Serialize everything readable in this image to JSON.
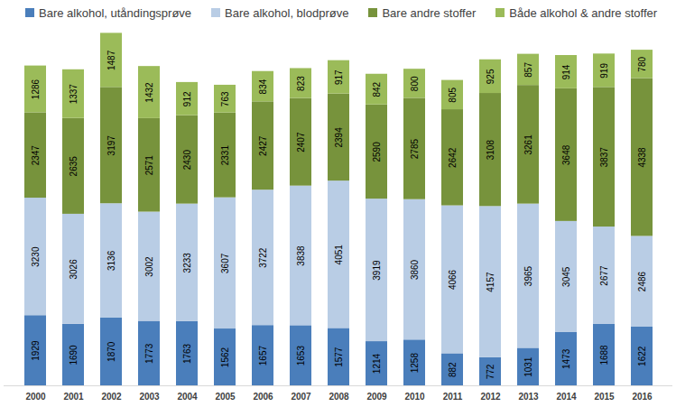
{
  "chart_data": {
    "type": "bar",
    "stacked": true,
    "data_labels": true,
    "legend": "top",
    "tick_labels": "x",
    "categories": [
      "2000",
      "2001",
      "2002",
      "2003",
      "2004",
      "2005",
      "2006",
      "2007",
      "2008",
      "2009",
      "2010",
      "2011",
      "2012",
      "2013",
      "2014",
      "2015",
      "2016"
    ],
    "ylim": [
      0,
      9700
    ],
    "series": [
      {
        "name": "Bare alkohol, utåndingsprøve",
        "color": "#4a7ebb",
        "values": [
          1929,
          1690,
          1870,
          1773,
          1763,
          1562,
          1657,
          1653,
          1577,
          1214,
          1258,
          882,
          772,
          1031,
          1473,
          1688,
          1622
        ]
      },
      {
        "name": "Bare alkohol, blodprøve",
        "color": "#b9cde5",
        "values": [
          3230,
          3026,
          3136,
          3002,
          3233,
          3607,
          3722,
          3838,
          4051,
          3919,
          3860,
          4066,
          4157,
          3965,
          3045,
          2677,
          2486
        ]
      },
      {
        "name": "Bare andre stoffer",
        "color": "#77933c",
        "values": [
          2347,
          2635,
          3197,
          2571,
          2430,
          2331,
          2427,
          2407,
          2394,
          2590,
          2785,
          2642,
          3108,
          3261,
          3648,
          3837,
          4338
        ]
      },
      {
        "name": "Både alkohol & andre stoffer",
        "color": "#9bbb59",
        "values": [
          1286,
          1337,
          1487,
          1432,
          912,
          763,
          834,
          823,
          917,
          842,
          800,
          805,
          925,
          857,
          914,
          919,
          780
        ]
      }
    ]
  }
}
